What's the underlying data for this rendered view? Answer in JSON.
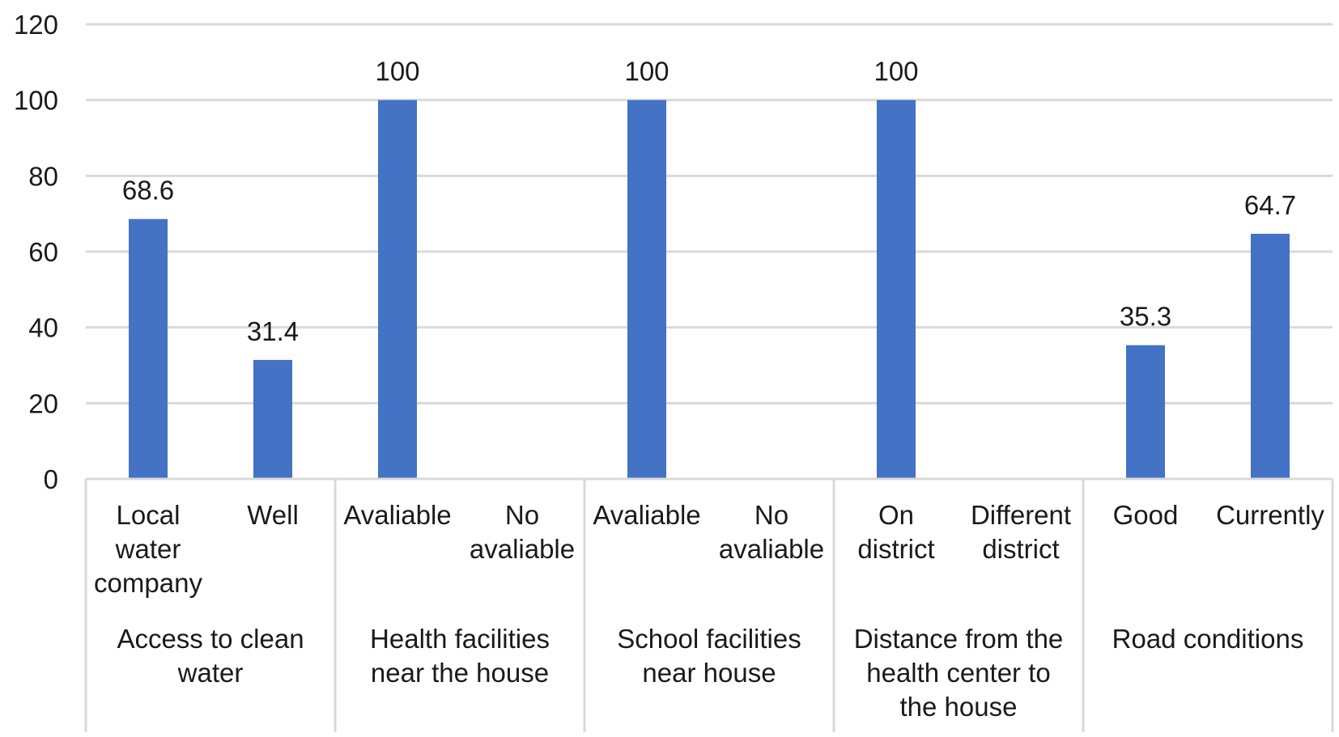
{
  "chart_data": {
    "type": "bar",
    "ylim": [
      0,
      120
    ],
    "yticks": [
      "0",
      "20",
      "40",
      "60",
      "80",
      "100",
      "120"
    ],
    "grid": true,
    "legend": "none",
    "bar_color": "#4472C4",
    "groups": [
      {
        "name": [
          "Access to clean",
          "water"
        ],
        "categories": [
          {
            "label": [
              "Local",
              "water",
              "company"
            ],
            "value": 68.6,
            "data_label": "68.6"
          },
          {
            "label": [
              "Well"
            ],
            "value": 31.4,
            "data_label": "31.4"
          }
        ]
      },
      {
        "name": [
          "Health facilities",
          "near the house"
        ],
        "categories": [
          {
            "label": [
              "Avaliable"
            ],
            "value": 100,
            "data_label": "100"
          },
          {
            "label": [
              "No",
              "avaliable"
            ],
            "value": 0,
            "data_label": ""
          }
        ]
      },
      {
        "name": [
          "School facilities",
          "near house"
        ],
        "categories": [
          {
            "label": [
              "Avaliable"
            ],
            "value": 100,
            "data_label": "100"
          },
          {
            "label": [
              "No",
              "avaliable"
            ],
            "value": 0,
            "data_label": ""
          }
        ]
      },
      {
        "name": [
          "Distance from the",
          "health center to",
          "the house"
        ],
        "categories": [
          {
            "label": [
              "On",
              "district"
            ],
            "value": 100,
            "data_label": "100"
          },
          {
            "label": [
              "Different",
              "district"
            ],
            "value": 0,
            "data_label": ""
          }
        ]
      },
      {
        "name": [
          "Road conditions"
        ],
        "categories": [
          {
            "label": [
              "Good"
            ],
            "value": 35.3,
            "data_label": "35.3"
          },
          {
            "label": [
              "Currently"
            ],
            "value": 64.7,
            "data_label": "64.7"
          }
        ]
      }
    ]
  }
}
